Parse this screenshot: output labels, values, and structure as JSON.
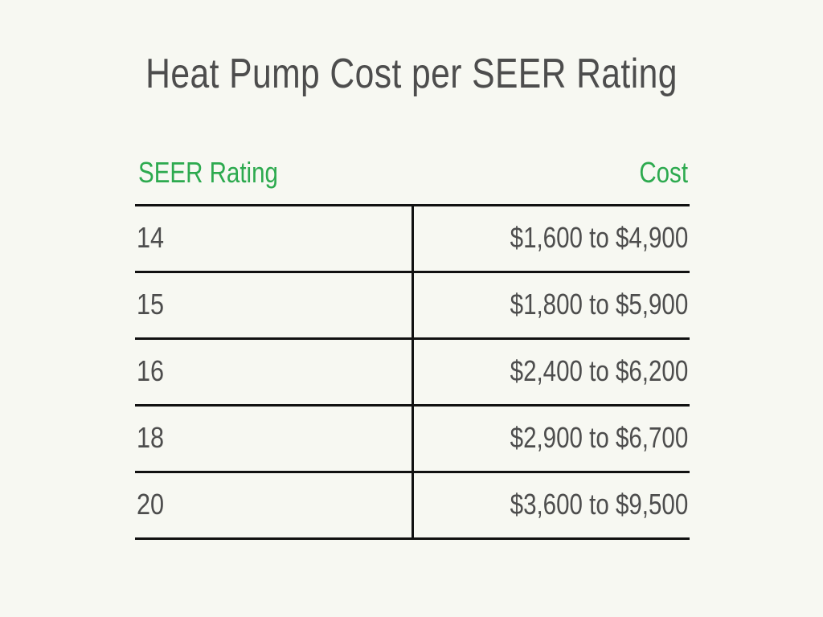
{
  "chart_data": {
    "type": "table",
    "title": "Heat Pump Cost per SEER Rating",
    "columns": [
      "SEER Rating",
      "Cost"
    ],
    "rows": [
      [
        "14",
        "$1,600 to $4,900"
      ],
      [
        "15",
        "$1,800 to $5,900"
      ],
      [
        "16",
        "$2,400 to $6,200"
      ],
      [
        "18",
        "$2,900 to $6,700"
      ],
      [
        "20",
        "$3,600 to $9,500"
      ]
    ]
  },
  "colors": {
    "background": "#f7f8f2",
    "header_text": "#2daa4f",
    "body_text": "#4d4d4d",
    "rules": "#111111"
  }
}
